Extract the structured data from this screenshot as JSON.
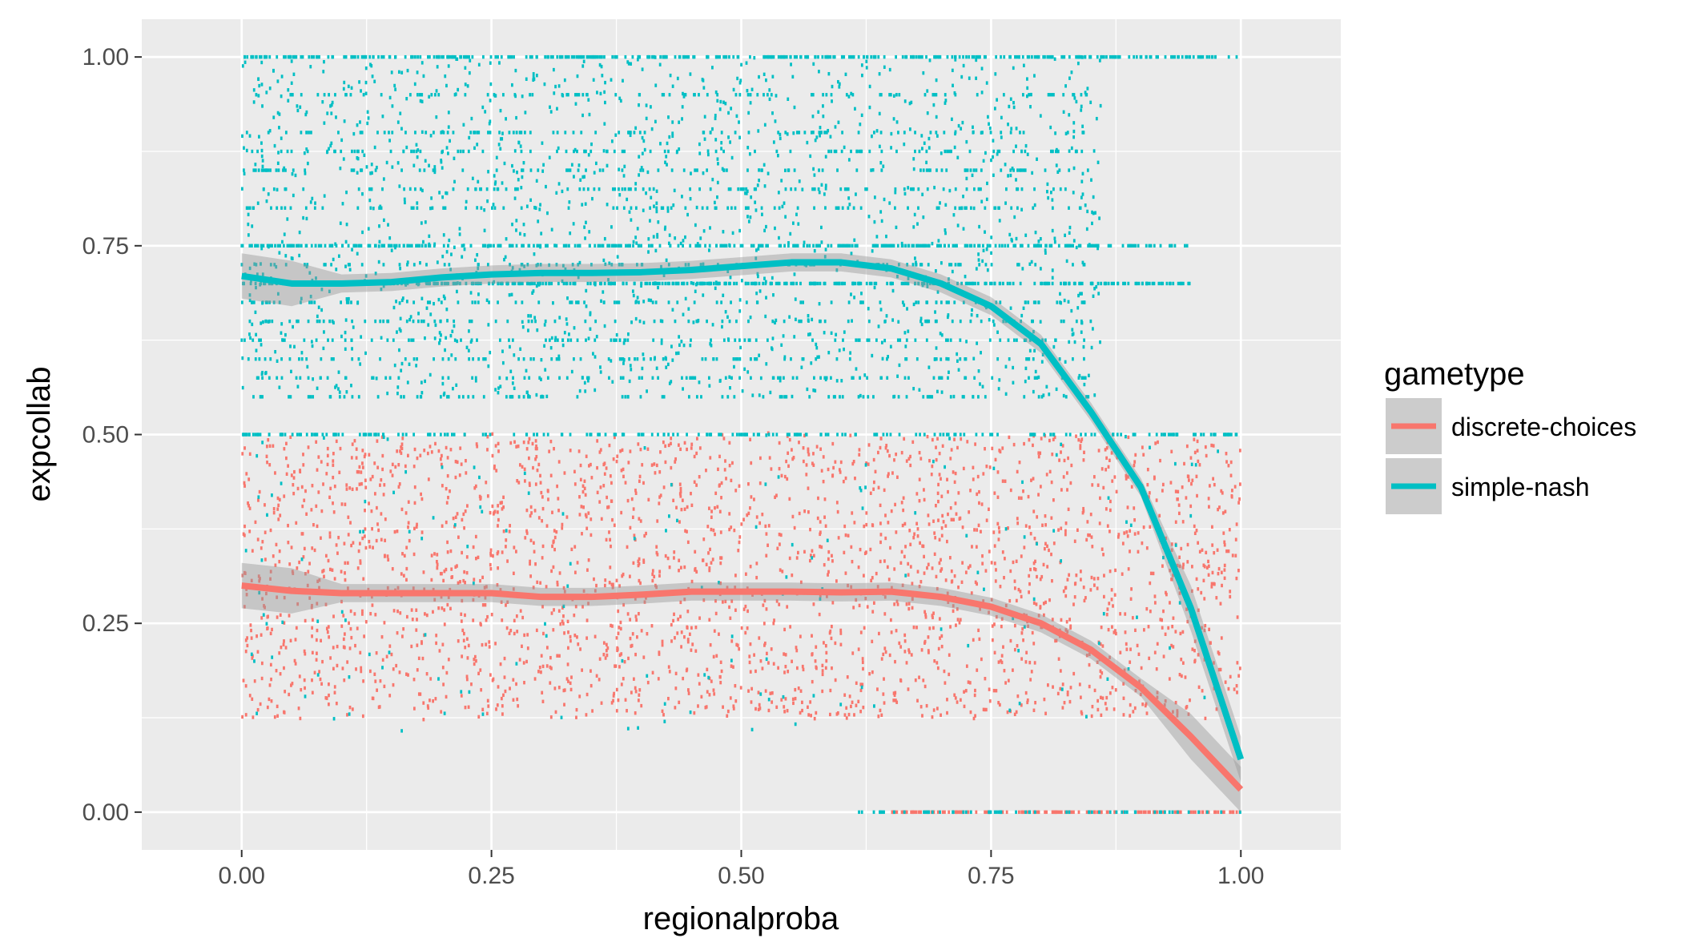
{
  "chart_data": {
    "type": "scatter",
    "title": "",
    "xlabel": "regionalproba",
    "ylabel": "expcollab",
    "xlim": [
      -0.1,
      1.1
    ],
    "ylim": [
      -0.05,
      1.05
    ],
    "x_ticks": [
      0.0,
      0.25,
      0.5,
      0.75,
      1.0
    ],
    "x_tick_labels": [
      "0.00",
      "0.25",
      "0.50",
      "0.75",
      "1.00"
    ],
    "y_ticks": [
      0.0,
      0.25,
      0.5,
      0.75,
      1.0
    ],
    "y_tick_labels": [
      "0.00",
      "0.25",
      "0.50",
      "0.75",
      "1.00"
    ],
    "grid": true,
    "background": "#ebebeb",
    "legend": {
      "title": "gametype",
      "position": "right"
    },
    "series": [
      {
        "name": "discrete-choices",
        "color": "#f8766d",
        "points_description": "dense jittered points, y mostly between 0.125 and 0.5 for x from 0 to 1; extra points at y = 0 for x between 0.65 and 1",
        "point_y_range": [
          0.125,
          0.5
        ],
        "smooth": [
          [
            0.0,
            0.3
          ],
          [
            0.05,
            0.293
          ],
          [
            0.1,
            0.29
          ],
          [
            0.15,
            0.29
          ],
          [
            0.2,
            0.29
          ],
          [
            0.25,
            0.29
          ],
          [
            0.3,
            0.285
          ],
          [
            0.35,
            0.285
          ],
          [
            0.4,
            0.288
          ],
          [
            0.45,
            0.292
          ],
          [
            0.5,
            0.292
          ],
          [
            0.55,
            0.292
          ],
          [
            0.6,
            0.291
          ],
          [
            0.65,
            0.292
          ],
          [
            0.7,
            0.285
          ],
          [
            0.75,
            0.272
          ],
          [
            0.8,
            0.25
          ],
          [
            0.85,
            0.215
          ],
          [
            0.9,
            0.165
          ],
          [
            0.95,
            0.1
          ],
          [
            1.0,
            0.03
          ]
        ]
      },
      {
        "name": "simple-nash",
        "color": "#00bfc4",
        "points_description": "jittered points, mostly between y = 0.55 and 1.0 for x up to 0.85, with dense horizontal bands at y = 1.0, 0.75, 0.7 and 0.5; sparse points below 0.5 and at y = 0",
        "point_y_range": [
          0.55,
          1.0
        ],
        "band_levels": [
          1.0,
          0.75,
          0.7,
          0.5
        ],
        "smooth": [
          [
            0.0,
            0.71
          ],
          [
            0.05,
            0.7
          ],
          [
            0.1,
            0.7
          ],
          [
            0.15,
            0.702
          ],
          [
            0.2,
            0.708
          ],
          [
            0.25,
            0.712
          ],
          [
            0.3,
            0.714
          ],
          [
            0.35,
            0.714
          ],
          [
            0.4,
            0.715
          ],
          [
            0.45,
            0.718
          ],
          [
            0.5,
            0.723
          ],
          [
            0.55,
            0.728
          ],
          [
            0.6,
            0.728
          ],
          [
            0.65,
            0.72
          ],
          [
            0.7,
            0.7
          ],
          [
            0.75,
            0.67
          ],
          [
            0.8,
            0.62
          ],
          [
            0.85,
            0.53
          ],
          [
            0.9,
            0.43
          ],
          [
            0.95,
            0.27
          ],
          [
            1.0,
            0.07
          ]
        ]
      }
    ]
  }
}
